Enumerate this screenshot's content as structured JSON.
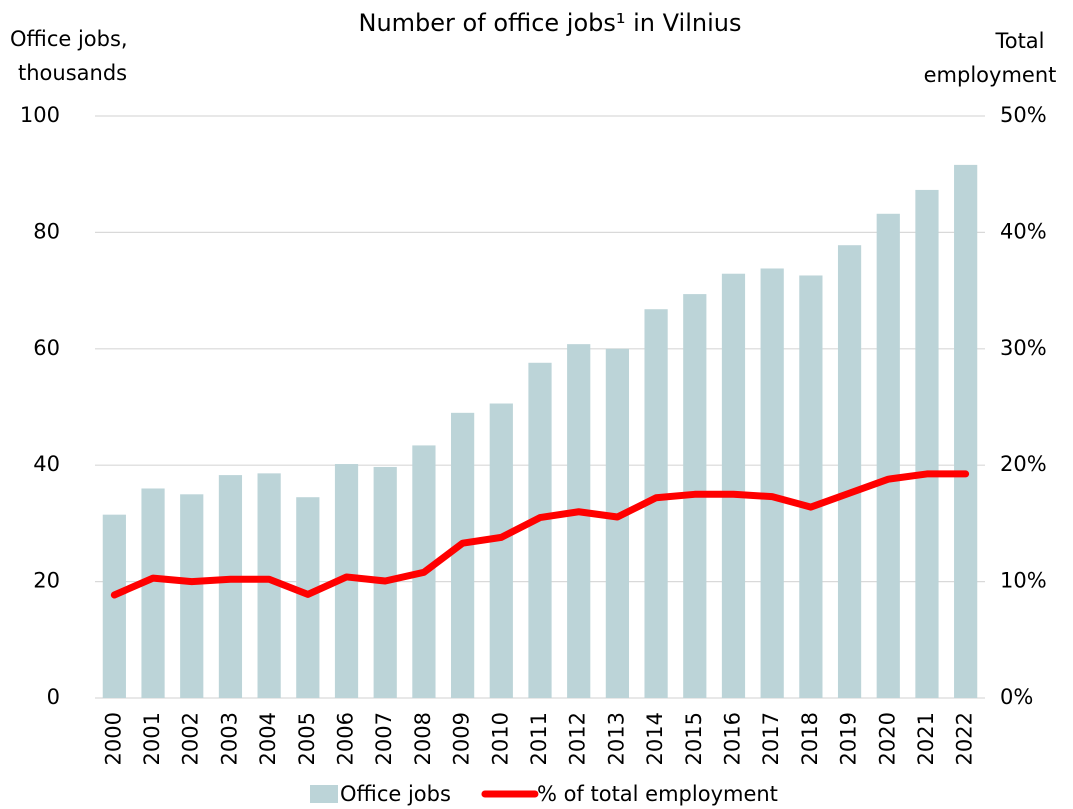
{
  "chart_data": {
    "type": "bar_line",
    "title": "Number of office jobs¹ in Vilnius",
    "y_label": [
      "Office jobs,",
      "thousands"
    ],
    "y2_label": [
      "Total",
      "employment"
    ],
    "categories": [
      "2000",
      "2001",
      "2002",
      "2003",
      "2004",
      "2005",
      "2006",
      "2007",
      "2008",
      "2009",
      "2010",
      "2011",
      "2012",
      "2013",
      "2014",
      "2015",
      "2016",
      "2017",
      "2018",
      "2019",
      "2020",
      "2021",
      "2022"
    ],
    "series": [
      {
        "name": "Office jobs",
        "type": "bar",
        "color": "#bcd4d8",
        "values": [
          31.5,
          36,
          35,
          38.3,
          38.6,
          34.5,
          40.2,
          39.7,
          43.4,
          49,
          50.6,
          57.6,
          60.8,
          60,
          66.8,
          69.4,
          72.9,
          73.8,
          72.6,
          77.8,
          83.2,
          87.3,
          91.6
        ]
      },
      {
        "name": "% of total employment",
        "type": "line",
        "axis": "y2",
        "color": "#ff0000",
        "values": [
          8.85,
          10.3,
          10,
          10.2,
          10.2,
          8.9,
          10.4,
          10.05,
          10.8,
          13.3,
          13.8,
          15.5,
          16,
          15.55,
          17.2,
          17.5,
          17.5,
          17.3,
          16.4,
          17.6,
          18.8,
          19.25,
          19.25
        ]
      }
    ],
    "ylim": [
      0,
      100
    ],
    "yticks": [
      0,
      20,
      40,
      60,
      80,
      100
    ],
    "y2lim": [
      0,
      50
    ],
    "y2ticks": [
      {
        "value": 0,
        "label": "0%"
      },
      {
        "value": 10,
        "label": "10%"
      },
      {
        "value": 20,
        "label": "20%"
      },
      {
        "value": 30,
        "label": "30%"
      },
      {
        "value": 40,
        "label": "40%"
      },
      {
        "value": 50,
        "label": "50%"
      }
    ],
    "grid": true,
    "legend": "bottom"
  }
}
